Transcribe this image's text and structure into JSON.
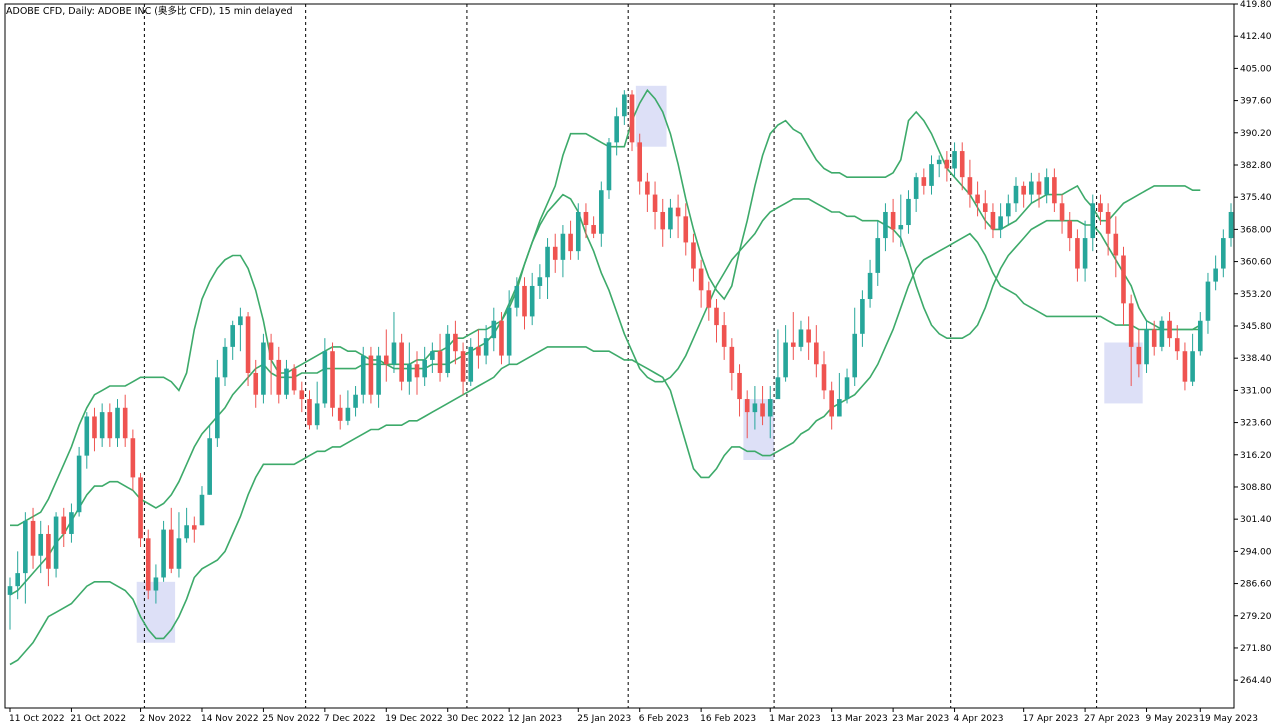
{
  "chart_title": "ADOBE CFD, Daily:  ADOBE INC (奥多比 CFD), 15 min delayed",
  "chart_data": {
    "type": "candlestick",
    "title": "ADOBE CFD, Daily:  ADOBE INC (奥多比 CFD), 15 min delayed",
    "y_axis_position": "right",
    "ylim": [
      258.0,
      419.8
    ],
    "y_ticks": [
      419.8,
      412.4,
      405.0,
      397.6,
      390.2,
      382.8,
      375.4,
      368.0,
      360.6,
      353.2,
      345.8,
      338.4,
      331.0,
      323.6,
      316.2,
      308.8,
      301.4,
      294.0,
      286.6,
      279.2,
      271.8,
      264.4
    ],
    "x_ticks": [
      {
        "label": "11 Oct 2022",
        "i": 0
      },
      {
        "label": "21 Oct 2022",
        "i": 8
      },
      {
        "label": "2 Nov 2022",
        "i": 17
      },
      {
        "label": "14 Nov 2022",
        "i": 25
      },
      {
        "label": "25 Nov 2022",
        "i": 33
      },
      {
        "label": "7 Dec 2022",
        "i": 41
      },
      {
        "label": "19 Dec 2022",
        "i": 49
      },
      {
        "label": "30 Dec 2022",
        "i": 57
      },
      {
        "label": "12 Jan 2023",
        "i": 65
      },
      {
        "label": "25 Jan 2023",
        "i": 74
      },
      {
        "label": "6 Feb 2023",
        "i": 82
      },
      {
        "label": "16 Feb 2023",
        "i": 90
      },
      {
        "label": "1 Mar 2023",
        "i": 99
      },
      {
        "label": "13 Mar 2023",
        "i": 107
      },
      {
        "label": "23 Mar 2023",
        "i": 115
      },
      {
        "label": "4 Apr 2023",
        "i": 123
      },
      {
        "label": "17 Apr 2023",
        "i": 132
      },
      {
        "label": "27 Apr 2023",
        "i": 140
      },
      {
        "label": "9 May 2023",
        "i": 148
      },
      {
        "label": "19 May 2023",
        "i": 155
      }
    ],
    "separators": [
      17,
      38,
      59,
      80,
      99,
      122,
      141
    ],
    "colors": {
      "up": "#26a69a",
      "down": "#ef5350",
      "band": "#3daa6a",
      "highlight": "#dde0f7",
      "grid": "#000000"
    },
    "candles": [
      [
        284,
        286,
        276,
        288
      ],
      [
        286,
        289,
        283,
        294
      ],
      [
        289,
        301,
        282,
        303
      ],
      [
        301,
        293,
        290,
        304
      ],
      [
        293,
        298,
        289,
        301
      ],
      [
        298,
        290,
        286,
        300
      ],
      [
        290,
        302,
        288,
        303
      ],
      [
        302,
        298,
        295,
        304
      ],
      [
        298,
        303,
        296,
        305
      ],
      [
        303,
        316,
        302,
        318
      ],
      [
        316,
        325,
        313,
        326
      ],
      [
        325,
        320,
        317,
        327
      ],
      [
        320,
        326,
        318,
        328
      ],
      [
        326,
        320,
        318,
        328
      ],
      [
        320,
        327,
        318,
        329
      ],
      [
        327,
        320,
        318,
        330
      ],
      [
        320,
        311,
        308,
        322
      ],
      [
        311,
        297,
        295,
        312
      ],
      [
        297,
        285,
        283,
        299
      ],
      [
        285,
        288,
        282,
        291
      ],
      [
        288,
        299,
        287,
        301
      ],
      [
        299,
        290,
        289,
        304
      ],
      [
        290,
        297,
        288,
        303
      ],
      [
        297,
        300,
        296,
        304
      ],
      [
        300,
        299,
        296,
        302
      ],
      [
        300,
        307,
        300,
        309
      ],
      [
        307,
        320,
        307,
        323
      ],
      [
        320,
        334,
        318,
        338
      ],
      [
        334,
        341,
        332,
        343
      ],
      [
        341,
        346,
        338,
        347
      ],
      [
        346,
        348,
        340,
        350
      ],
      [
        348,
        335,
        332,
        349
      ],
      [
        335,
        330,
        327,
        338
      ],
      [
        330,
        342,
        328,
        344
      ],
      [
        342,
        338,
        330,
        344
      ],
      [
        338,
        330,
        328,
        341
      ],
      [
        330,
        336,
        329,
        338
      ],
      [
        336,
        331,
        330,
        337
      ],
      [
        331,
        329,
        326,
        333
      ],
      [
        329,
        323,
        322,
        331
      ],
      [
        323,
        328,
        322,
        333
      ],
      [
        328,
        340,
        327,
        343
      ],
      [
        340,
        327,
        325,
        342
      ],
      [
        327,
        324,
        322,
        330
      ],
      [
        324,
        327,
        323,
        331
      ],
      [
        327,
        330,
        325,
        332
      ],
      [
        330,
        339,
        328,
        341
      ],
      [
        339,
        330,
        328,
        341
      ],
      [
        330,
        339,
        327,
        341
      ],
      [
        339,
        337,
        333,
        345
      ],
      [
        337,
        342,
        335,
        349
      ],
      [
        342,
        333,
        331,
        344
      ],
      [
        333,
        337,
        330,
        342
      ],
      [
        337,
        334,
        330,
        340
      ],
      [
        334,
        338,
        332,
        341
      ],
      [
        338,
        340,
        335,
        342
      ],
      [
        340,
        335,
        333,
        344
      ],
      [
        335,
        344,
        334,
        346
      ],
      [
        344,
        340,
        337,
        347
      ],
      [
        340,
        333,
        330,
        342
      ],
      [
        333,
        341,
        332,
        343
      ],
      [
        341,
        339,
        336,
        345
      ],
      [
        339,
        343,
        337,
        346
      ],
      [
        343,
        347,
        340,
        350
      ],
      [
        347,
        339,
        337,
        349
      ],
      [
        339,
        350,
        337,
        354
      ],
      [
        350,
        355,
        348,
        357
      ],
      [
        355,
        348,
        345,
        357
      ],
      [
        348,
        355,
        346,
        358
      ],
      [
        355,
        357,
        352,
        360
      ],
      [
        357,
        364,
        352,
        366
      ],
      [
        364,
        361,
        358,
        367
      ],
      [
        361,
        367,
        357,
        369
      ],
      [
        367,
        363,
        361,
        370
      ],
      [
        363,
        372,
        361,
        374
      ],
      [
        372,
        369,
        366,
        374
      ],
      [
        369,
        367,
        366,
        371
      ],
      [
        367,
        377,
        364,
        379
      ],
      [
        377,
        388,
        375,
        389
      ],
      [
        388,
        394,
        385,
        396
      ],
      [
        394,
        399,
        392,
        400
      ],
      [
        399,
        388,
        386,
        400
      ],
      [
        388,
        379,
        376,
        390
      ],
      [
        379,
        376,
        372,
        381
      ],
      [
        376,
        372,
        368,
        379
      ],
      [
        372,
        368,
        364,
        375
      ],
      [
        368,
        373,
        366,
        375
      ],
      [
        373,
        371,
        366,
        376
      ],
      [
        371,
        365,
        362,
        374
      ],
      [
        365,
        359,
        356,
        367
      ],
      [
        359,
        354,
        350,
        361
      ],
      [
        354,
        350,
        347,
        356
      ],
      [
        350,
        346,
        342,
        352
      ],
      [
        346,
        341,
        338,
        349
      ],
      [
        341,
        335,
        331,
        343
      ],
      [
        335,
        329,
        325,
        337
      ],
      [
        329,
        326,
        320,
        331
      ],
      [
        326,
        328,
        322,
        332
      ],
      [
        328,
        325,
        323,
        332
      ],
      [
        325,
        329,
        320,
        332
      ],
      [
        329,
        334,
        330,
        345
      ],
      [
        334,
        342,
        333,
        346
      ],
      [
        342,
        341,
        338,
        349
      ],
      [
        341,
        345,
        340,
        347
      ],
      [
        345,
        342,
        338,
        348
      ],
      [
        342,
        337,
        334,
        346
      ],
      [
        337,
        331,
        329,
        340
      ],
      [
        331,
        325,
        322,
        333
      ],
      [
        325,
        329,
        326,
        335
      ],
      [
        329,
        334,
        328,
        336
      ],
      [
        334,
        344,
        332,
        350
      ],
      [
        344,
        352,
        341,
        354
      ],
      [
        352,
        358,
        350,
        361
      ],
      [
        358,
        366,
        355,
        370
      ],
      [
        366,
        372,
        363,
        374
      ],
      [
        372,
        368,
        365,
        375
      ],
      [
        368,
        369,
        364,
        376
      ],
      [
        369,
        375,
        367,
        377
      ],
      [
        375,
        380,
        372,
        381
      ],
      [
        380,
        378,
        376,
        382
      ],
      [
        378,
        383,
        376,
        385
      ],
      [
        383,
        384,
        380,
        385
      ],
      [
        384,
        382,
        379,
        386
      ],
      [
        382,
        386,
        380,
        388
      ],
      [
        386,
        380,
        377,
        388
      ],
      [
        380,
        376,
        373,
        384
      ],
      [
        376,
        374,
        371,
        379
      ],
      [
        374,
        372,
        368,
        377
      ],
      [
        372,
        368,
        366,
        374
      ],
      [
        368,
        371,
        366,
        374
      ],
      [
        371,
        374,
        369,
        376
      ],
      [
        374,
        378,
        372,
        380
      ],
      [
        378,
        376,
        373,
        379
      ],
      [
        376,
        379,
        374,
        381
      ],
      [
        379,
        376,
        373,
        381
      ],
      [
        376,
        380,
        374,
        382
      ],
      [
        380,
        374,
        372,
        382
      ],
      [
        374,
        370,
        367,
        376
      ],
      [
        370,
        366,
        363,
        372
      ],
      [
        366,
        359,
        356,
        368
      ],
      [
        359,
        366,
        356,
        370
      ],
      [
        366,
        374,
        363,
        376
      ],
      [
        374,
        372,
        369,
        376
      ],
      [
        372,
        367,
        362,
        374
      ],
      [
        367,
        362,
        357,
        371
      ],
      [
        362,
        351,
        346,
        364
      ],
      [
        351,
        341,
        332,
        353
      ],
      [
        341,
        337,
        334,
        345
      ],
      [
        337,
        345,
        335,
        347
      ],
      [
        345,
        341,
        339,
        347
      ],
      [
        341,
        347,
        340,
        348
      ],
      [
        347,
        343,
        341,
        349
      ],
      [
        343,
        340,
        338,
        346
      ],
      [
        340,
        333,
        331,
        342
      ],
      [
        333,
        340,
        332,
        344
      ],
      [
        340,
        347,
        339,
        349
      ],
      [
        347,
        356,
        344,
        358
      ],
      [
        356,
        359,
        354,
        362
      ],
      [
        359,
        366,
        357,
        368
      ],
      [
        366,
        372,
        364,
        374
      ]
    ],
    "bands": {
      "upper": [
        300,
        300,
        301,
        302,
        303,
        306,
        310,
        314,
        318,
        323,
        327,
        330,
        331,
        332,
        332,
        332,
        333,
        334,
        334,
        334,
        334,
        333,
        331,
        335,
        345,
        352,
        356,
        359,
        361,
        362,
        362,
        359,
        354,
        347,
        338,
        335,
        335,
        336,
        337,
        338,
        339,
        340,
        341,
        341,
        340,
        340,
        339,
        338,
        338,
        337,
        337,
        337,
        337,
        338,
        338,
        340,
        340,
        341,
        343,
        343,
        344,
        345,
        345,
        346,
        347,
        350,
        354,
        360,
        365,
        370,
        374,
        378,
        385,
        390,
        390,
        390,
        389,
        388,
        387,
        387,
        387,
        393,
        397,
        400,
        398,
        395,
        390,
        383,
        375,
        368,
        362,
        357,
        354,
        352,
        355,
        363,
        370,
        378,
        385,
        390,
        392,
        393,
        391,
        390,
        387,
        384,
        382,
        381,
        381,
        380,
        380,
        380,
        380,
        380,
        380,
        381,
        384,
        393,
        395,
        393,
        390,
        386,
        382,
        380,
        378,
        376,
        373,
        370,
        368,
        368,
        369,
        370,
        372,
        374,
        375,
        376,
        376,
        376,
        377,
        378,
        375,
        373,
        370,
        370,
        372,
        374,
        375,
        376,
        377,
        378,
        378,
        378,
        378,
        378,
        377,
        377
      ],
      "middle": [
        284,
        285,
        287,
        289,
        291,
        293,
        296,
        298,
        301,
        304,
        307,
        309,
        309,
        310,
        310,
        309,
        308,
        306,
        305,
        304,
        305,
        307,
        310,
        314,
        318,
        321,
        323,
        325,
        327,
        330,
        332,
        334,
        336,
        337,
        335,
        334,
        334,
        334,
        335,
        335,
        335,
        336,
        336,
        336,
        336,
        336,
        337,
        337,
        337,
        337,
        336,
        336,
        336,
        336,
        336,
        337,
        337,
        337,
        338,
        339,
        340,
        341,
        342,
        344,
        347,
        351,
        355,
        360,
        365,
        369,
        372,
        374,
        376,
        375,
        372,
        367,
        363,
        358,
        354,
        349,
        344,
        340,
        336,
        334,
        333,
        333,
        334,
        336,
        339,
        343,
        347,
        351,
        355,
        358,
        361,
        363,
        365,
        367,
        370,
        372,
        373,
        374,
        375,
        375,
        375,
        374,
        373,
        372,
        372,
        371,
        371,
        370,
        370,
        370,
        369,
        368,
        366,
        361,
        355,
        350,
        346,
        344,
        343,
        343,
        343,
        344,
        346,
        350,
        355,
        359,
        362,
        364,
        366,
        368,
        369,
        370,
        370,
        370,
        370,
        370,
        369,
        369,
        367,
        364,
        361,
        358,
        355,
        350,
        347,
        346,
        345,
        345,
        345,
        345,
        345,
        346
      ],
      "lower": [
        268,
        269,
        271,
        273,
        276,
        279,
        280,
        281,
        282,
        284,
        286,
        287,
        287,
        287,
        286,
        285,
        283,
        279,
        276,
        274,
        274,
        276,
        279,
        283,
        288,
        290,
        291,
        292,
        294,
        298,
        302,
        307,
        311,
        314,
        314,
        314,
        314,
        314,
        315,
        316,
        317,
        317,
        318,
        318,
        319,
        320,
        321,
        322,
        322,
        323,
        323,
        323,
        324,
        324,
        325,
        326,
        327,
        328,
        329,
        330,
        331,
        332,
        333,
        334,
        336,
        337,
        337,
        338,
        339,
        340,
        341,
        341,
        341,
        341,
        341,
        341,
        340,
        340,
        340,
        339,
        338,
        338,
        337,
        336,
        335,
        334,
        331,
        325,
        319,
        313,
        311,
        311,
        313,
        316,
        318,
        318,
        317,
        317,
        316,
        316,
        317,
        318,
        319,
        321,
        322,
        324,
        325,
        327,
        328,
        329,
        330,
        332,
        334,
        337,
        341,
        345,
        350,
        355,
        359,
        361,
        362,
        363,
        364,
        365,
        366,
        367,
        365,
        362,
        358,
        355,
        354,
        353,
        351,
        350,
        349,
        348,
        348,
        348,
        348,
        348,
        348,
        348,
        348,
        347,
        346,
        346,
        346,
        345,
        345,
        345,
        345,
        345,
        345,
        345,
        345,
        345
      ]
    },
    "highlights": [
      [
        17,
        21,
        273,
        287
      ],
      [
        82,
        85,
        387,
        401
      ],
      [
        96,
        99,
        315,
        329
      ],
      [
        143,
        147,
        328,
        342
      ]
    ]
  }
}
